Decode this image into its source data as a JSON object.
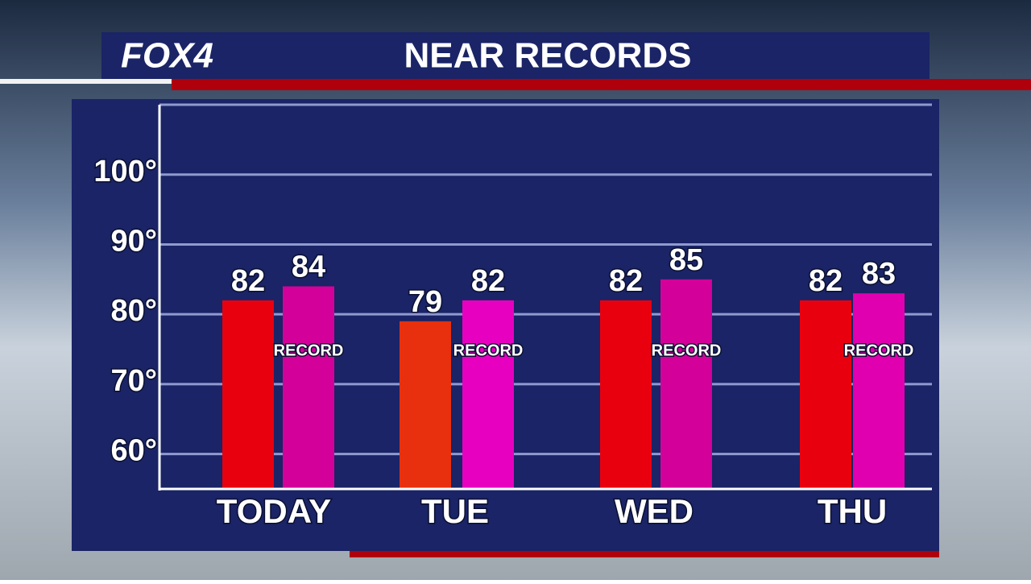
{
  "logo": "FOX4",
  "chart_data": {
    "type": "bar",
    "title": "NEAR RECORDS",
    "categories": [
      "TODAY",
      "TUE",
      "WED",
      "THU"
    ],
    "series": [
      {
        "colors": [
          "#e8000f",
          "#e8300e",
          "#e8000f",
          "#e8000f"
        ],
        "values": [
          82,
          79,
          82,
          82
        ]
      },
      {
        "name": "RECORD",
        "colors": [
          "#d4009a",
          "#e800c0",
          "#d4009a",
          "#e000b0"
        ],
        "values": [
          84,
          82,
          85,
          83
        ]
      }
    ],
    "ylim": [
      55,
      110
    ],
    "yticks": [
      {
        "value": 60,
        "label": "60°"
      },
      {
        "value": 70,
        "label": "70°"
      },
      {
        "value": 80,
        "label": "80°"
      },
      {
        "value": 90,
        "label": "90°"
      },
      {
        "value": 100,
        "label": "100°"
      }
    ],
    "grid": true
  }
}
